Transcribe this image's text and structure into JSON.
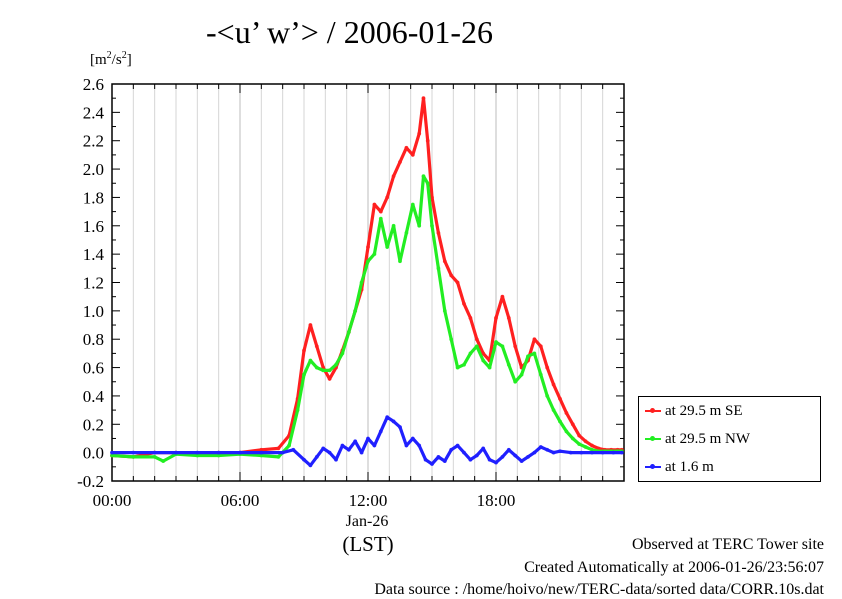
{
  "title": "-<u’ w’> / 2006-01-26",
  "unit_label": {
    "base": "[m",
    "sup1": "2",
    "mid": "/s",
    "sup2": "2",
    "end": "]"
  },
  "x_sub_label": "Jan-26",
  "x_unit_label": "(LST)",
  "footer": {
    "line1": "Observed at TERC Tower site",
    "line2": "Created Automatically at 2006-01-26/23:56:07",
    "line3": "Data source : /home/hoivo/new/TERC-data/sorted  data/CORR.10s.dat"
  },
  "chart_data": {
    "type": "line",
    "title": "-<u’ w’> / 2006-01-26",
    "xlabel": "(LST)",
    "ylabel": "[m2/s2]",
    "xlim": [
      0,
      24
    ],
    "ylim": [
      -0.2,
      2.6
    ],
    "x_ticks": [
      0,
      6,
      12,
      18
    ],
    "x_tick_labels": [
      "00:00",
      "06:00",
      "12:00",
      "18:00"
    ],
    "y_ticks": [
      -0.2,
      0.0,
      0.2,
      0.4,
      0.6,
      0.8,
      1.0,
      1.2,
      1.4,
      1.6,
      1.8,
      2.0,
      2.2,
      2.4,
      2.6
    ],
    "y_tick_labels": [
      "-0.2",
      "0.0",
      "0.2",
      "0.4",
      "0.6",
      "0.8",
      "1.0",
      "1.2",
      "1.4",
      "1.6",
      "1.8",
      "2.0",
      "2.2",
      "2.4",
      "2.6"
    ],
    "grid": "vertical-minor",
    "legend": "outside-right",
    "series": [
      {
        "name": "at 29.5 m SE",
        "color": "#ff2020",
        "x": [
          0,
          1,
          2,
          3,
          4,
          5,
          6,
          7,
          7.8,
          8.3,
          8.7,
          9.0,
          9.3,
          9.6,
          9.9,
          10.2,
          10.5,
          10.8,
          11.1,
          11.4,
          11.7,
          12.0,
          12.3,
          12.6,
          12.9,
          13.2,
          13.5,
          13.8,
          14.1,
          14.4,
          14.6,
          14.8,
          15.0,
          15.3,
          15.6,
          15.9,
          16.2,
          16.5,
          16.8,
          17.1,
          17.4,
          17.7,
          18.0,
          18.3,
          18.6,
          18.9,
          19.2,
          19.5,
          19.8,
          20.1,
          20.4,
          20.7,
          21.0,
          21.3,
          21.6,
          21.9,
          22.2,
          22.5,
          22.8,
          23.1,
          23.4,
          23.7,
          23.9
        ],
        "values": [
          -0.02,
          -0.03,
          0.0,
          0.0,
          -0.01,
          0.0,
          0.0,
          0.02,
          0.03,
          0.12,
          0.38,
          0.72,
          0.9,
          0.75,
          0.6,
          0.52,
          0.6,
          0.72,
          0.85,
          1.0,
          1.15,
          1.45,
          1.75,
          1.7,
          1.8,
          1.95,
          2.05,
          2.15,
          2.1,
          2.25,
          2.5,
          2.2,
          1.8,
          1.55,
          1.35,
          1.25,
          1.2,
          1.05,
          0.95,
          0.8,
          0.7,
          0.65,
          0.95,
          1.1,
          0.95,
          0.75,
          0.6,
          0.65,
          0.8,
          0.75,
          0.6,
          0.48,
          0.38,
          0.28,
          0.2,
          0.12,
          0.08,
          0.05,
          0.03,
          0.02,
          0.02,
          0.02,
          0.02
        ]
      },
      {
        "name": "at 29.5 m NW",
        "color": "#22ee22",
        "x": [
          0,
          1,
          2,
          2.4,
          3,
          4,
          5,
          6,
          7,
          7.8,
          8.3,
          8.7,
          9.0,
          9.3,
          9.6,
          9.9,
          10.2,
          10.5,
          10.8,
          11.1,
          11.4,
          11.7,
          12.0,
          12.3,
          12.6,
          12.9,
          13.2,
          13.5,
          13.8,
          14.1,
          14.4,
          14.6,
          14.8,
          15.0,
          15.3,
          15.6,
          15.9,
          16.2,
          16.5,
          16.8,
          17.1,
          17.4,
          17.7,
          18.0,
          18.3,
          18.6,
          18.9,
          19.2,
          19.5,
          19.8,
          20.1,
          20.4,
          20.7,
          21.0,
          21.3,
          21.6,
          21.9,
          22.2,
          22.5,
          22.8,
          23.1,
          23.4,
          23.7,
          23.9
        ],
        "values": [
          -0.02,
          -0.03,
          -0.03,
          -0.06,
          -0.01,
          -0.02,
          -0.02,
          -0.01,
          -0.02,
          -0.03,
          0.05,
          0.3,
          0.55,
          0.65,
          0.6,
          0.58,
          0.58,
          0.62,
          0.7,
          0.85,
          1.0,
          1.2,
          1.35,
          1.4,
          1.65,
          1.45,
          1.6,
          1.35,
          1.55,
          1.75,
          1.6,
          1.95,
          1.9,
          1.6,
          1.3,
          1.0,
          0.8,
          0.6,
          0.62,
          0.7,
          0.75,
          0.65,
          0.6,
          0.78,
          0.75,
          0.62,
          0.5,
          0.55,
          0.68,
          0.7,
          0.55,
          0.4,
          0.3,
          0.22,
          0.15,
          0.1,
          0.06,
          0.04,
          0.02,
          0.01,
          0.01,
          0.01,
          0.01,
          0.01
        ]
      },
      {
        "name": "at 1.6 m",
        "color": "#2020ff",
        "x": [
          0,
          1,
          2,
          3,
          4,
          5,
          6,
          7,
          8,
          8.5,
          9.0,
          9.3,
          9.6,
          9.9,
          10.2,
          10.5,
          10.8,
          11.1,
          11.4,
          11.7,
          12.0,
          12.3,
          12.6,
          12.9,
          13.2,
          13.5,
          13.8,
          14.1,
          14.4,
          14.7,
          15.0,
          15.3,
          15.6,
          15.9,
          16.2,
          16.5,
          16.8,
          17.1,
          17.4,
          17.7,
          18.0,
          18.3,
          18.6,
          18.9,
          19.2,
          19.5,
          19.8,
          20.1,
          20.4,
          20.7,
          21.0,
          21.5,
          22.0,
          22.5,
          23.0,
          23.5,
          23.9
        ],
        "values": [
          0.0,
          0.0,
          0.0,
          0.0,
          0.0,
          0.0,
          0.0,
          0.0,
          0.0,
          0.02,
          -0.05,
          -0.09,
          -0.03,
          0.03,
          0.0,
          -0.05,
          0.05,
          0.02,
          0.08,
          0.0,
          0.1,
          0.05,
          0.15,
          0.25,
          0.22,
          0.18,
          0.05,
          0.1,
          0.05,
          -0.05,
          -0.08,
          -0.03,
          -0.06,
          0.02,
          0.05,
          0.0,
          -0.05,
          -0.02,
          0.03,
          -0.05,
          -0.07,
          -0.03,
          0.02,
          -0.02,
          -0.06,
          -0.03,
          0.0,
          0.04,
          0.02,
          0.0,
          0.01,
          0.0,
          0.0,
          0.0,
          0.0,
          0.0,
          0.0
        ]
      }
    ]
  }
}
